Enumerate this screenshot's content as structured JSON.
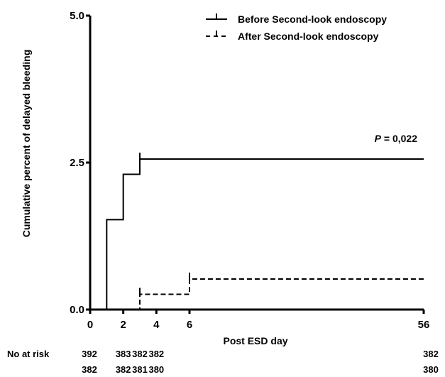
{
  "chart_data": {
    "type": "line",
    "step": true,
    "title": "",
    "xlabel": "Post ESD day",
    "ylabel": "Cumulative percent of delayed bleeding",
    "xlim": [
      0,
      56
    ],
    "ylim": [
      0,
      5.0
    ],
    "x_scale": "piecewise",
    "x_ticks": [
      0,
      2,
      4,
      6,
      56
    ],
    "y_ticks": [
      0,
      2.5,
      5.0
    ],
    "y_tick_labels": [
      "0.0",
      "2.5",
      "5.0"
    ],
    "grid": false,
    "legend_position": "top-right",
    "annotation": {
      "prefix": "P",
      "text": " = 0,022"
    },
    "series": [
      {
        "name": "Before Second-look endoscopy",
        "style": "solid",
        "x": [
          0,
          1,
          2,
          3,
          56
        ],
        "y": [
          0,
          1.53,
          2.3,
          2.56,
          2.56
        ],
        "censor_x": [
          3
        ]
      },
      {
        "name": "After Second-look endoscopy",
        "style": "dashed",
        "x": [
          0,
          3,
          6,
          56
        ],
        "y": [
          0,
          0.26,
          0.52,
          0.52
        ],
        "censor_x": [
          3,
          6
        ]
      }
    ],
    "risk_table": {
      "label": "No at risk",
      "days": [
        1,
        2,
        3,
        4,
        56
      ],
      "rows": [
        [
          "392",
          "383",
          "382",
          "382",
          "382"
        ],
        [
          "382",
          "382",
          "381",
          "380",
          "380"
        ]
      ]
    }
  }
}
